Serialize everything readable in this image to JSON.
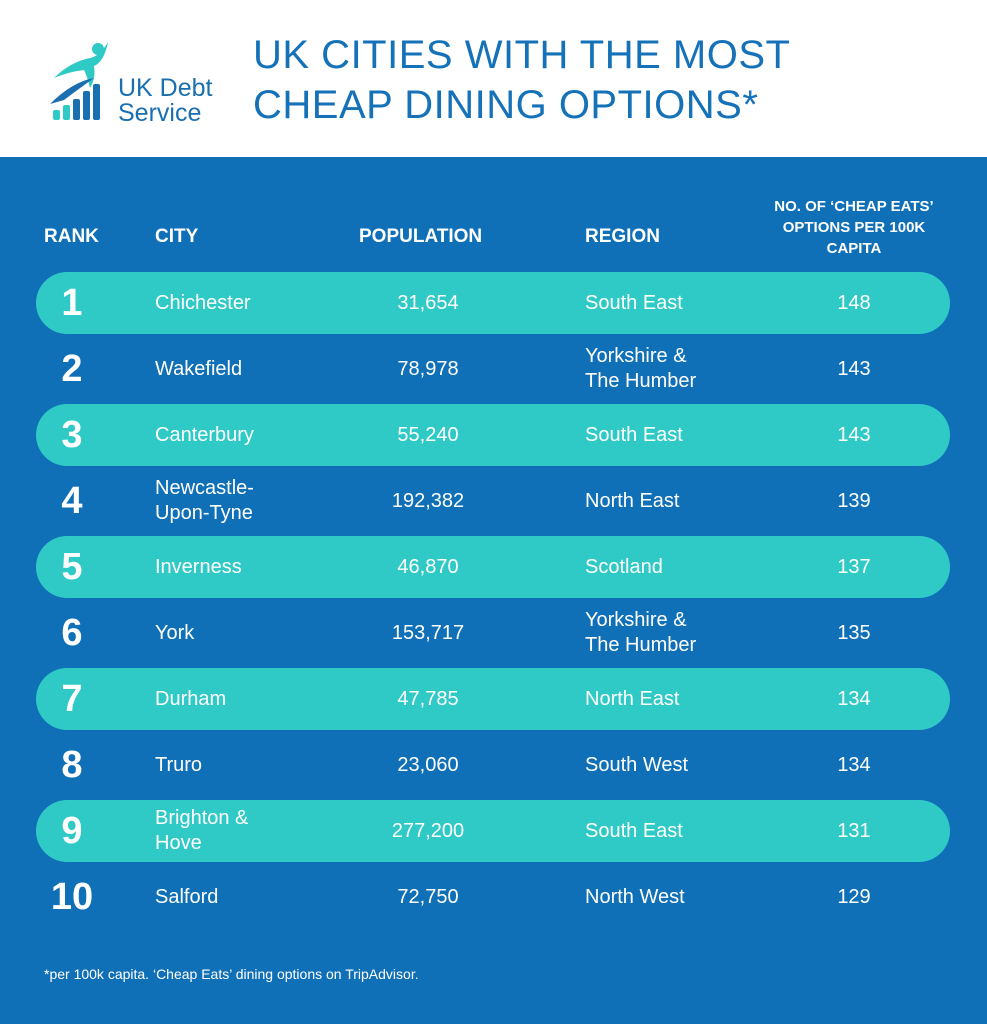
{
  "brand": {
    "name_line1": "UK Debt",
    "name_line2": "Service"
  },
  "title_line1": "UK CITIES WITH THE MOST",
  "title_line2": "CHEAP DINING OPTIONS*",
  "colors": {
    "brand_blue": "#1672b8",
    "panel": "#0f70b7",
    "band": "#2fcac6",
    "text": "#ffffff"
  },
  "chart_data": {
    "type": "table",
    "columns": [
      "RANK",
      "CITY",
      "POPULATION",
      "REGION",
      "NO. OF ‘CHEAP EATS’ OPTIONS PER 100K CAPITA"
    ],
    "rows": [
      {
        "rank": "1",
        "city": "Chichester",
        "population": "31,654",
        "region": "South East",
        "eats": "148"
      },
      {
        "rank": "2",
        "city": "Wakefield",
        "population": "78,978",
        "region": "Yorkshire & The Humber",
        "eats": "143"
      },
      {
        "rank": "3",
        "city": "Canterbury",
        "population": "55,240",
        "region": "South East",
        "eats": "143"
      },
      {
        "rank": "4",
        "city": "Newcastle-Upon-Tyne",
        "population": "192,382",
        "region": "North East",
        "eats": "139"
      },
      {
        "rank": "5",
        "city": "Inverness",
        "population": "46,870",
        "region": "Scotland",
        "eats": "137"
      },
      {
        "rank": "6",
        "city": "York",
        "population": "153,717",
        "region": "Yorkshire & The Humber",
        "eats": "135"
      },
      {
        "rank": "7",
        "city": "Durham",
        "population": "47,785",
        "region": "North East",
        "eats": "134"
      },
      {
        "rank": "8",
        "city": "Truro",
        "population": "23,060",
        "region": "South West",
        "eats": "134"
      },
      {
        "rank": "9",
        "city": "Brighton & Hove",
        "population": "277,200",
        "region": "South East",
        "eats": "131"
      },
      {
        "rank": "10",
        "city": "Salford",
        "population": "72,750",
        "region": "North West",
        "eats": "129"
      }
    ]
  },
  "footnote": "*per 100k capita. ‘Cheap Eats’ dining options on TripAdvisor."
}
